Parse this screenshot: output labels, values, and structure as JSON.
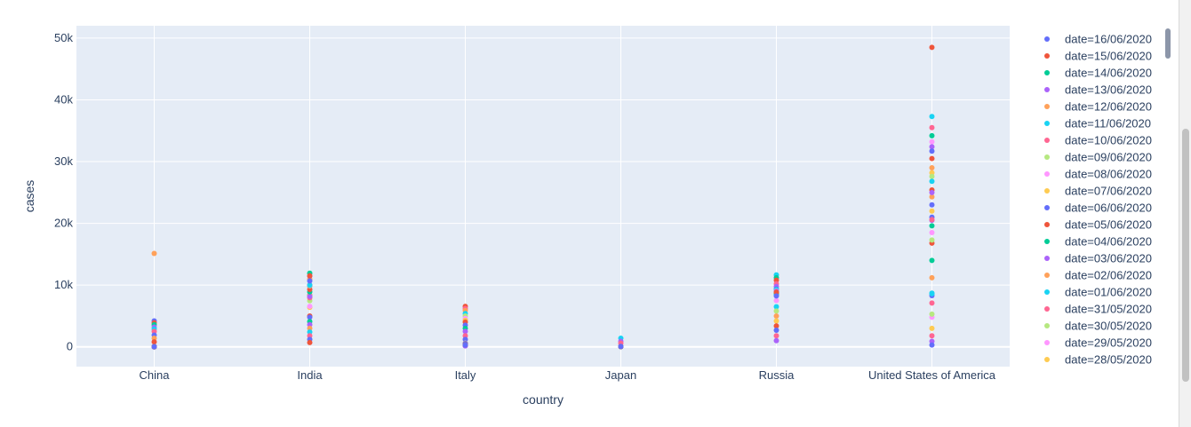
{
  "chart_data": {
    "type": "scatter",
    "xlabel": "country",
    "ylabel": "cases",
    "categories": [
      "China",
      "India",
      "Italy",
      "Japan",
      "Russia",
      "United States of America"
    ],
    "ylim": [
      -3200,
      52000
    ],
    "yticks": [
      0,
      10000,
      20000,
      30000,
      40000,
      50000
    ],
    "ytick_labels": [
      "0",
      "10k",
      "20k",
      "30k",
      "40k",
      "50k"
    ],
    "grid": true,
    "legend": "right",
    "series": [
      {
        "name": "date=16/06/2020",
        "color": "#636efa",
        "values": [
          40,
          10667,
          303,
          72,
          8248,
          23000
        ]
      },
      {
        "name": "date=15/06/2020",
        "color": "#EF553B",
        "values": [
          49,
          11502,
          338,
          50,
          8835,
          48500
        ]
      },
      {
        "name": "date=14/06/2020",
        "color": "#00cc96",
        "values": [
          57,
          11929,
          346,
          47,
          8706,
          14000
        ]
      },
      {
        "name": "date=13/06/2020",
        "color": "#ab63fa",
        "values": [
          11,
          11458,
          163,
          40,
          8987,
          25000
        ]
      },
      {
        "name": "date=12/06/2020",
        "color": "#FFA15A",
        "values": [
          11,
          10956,
          202,
          61,
          8779,
          29000
        ]
      },
      {
        "name": "date=11/06/2020",
        "color": "#19d3f3",
        "values": [
          7,
          9996,
          283,
          41,
          8404,
          26800
        ]
      },
      {
        "name": "date=10/06/2020",
        "color": "#FF6692",
        "values": [
          3,
          9985,
          202,
          36,
          8595,
          20600
        ]
      },
      {
        "name": "date=09/06/2020",
        "color": "#B6E880",
        "values": [
          3,
          9987,
          280,
          18,
          8985,
          17300
        ]
      },
      {
        "name": "date=08/06/2020",
        "color": "#FF97FF",
        "values": [
          4,
          9983,
          197,
          42,
          9035,
          18500
        ]
      },
      {
        "name": "date=07/06/2020",
        "color": "#FECB52",
        "values": [
          6,
          9887,
          270,
          47,
          8855,
          22000
        ]
      },
      {
        "name": "date=06/06/2020",
        "color": "#636efa",
        "values": [
          5,
          9851,
          518,
          48,
          8726,
          21000
        ]
      },
      {
        "name": "date=05/06/2020",
        "color": "#EF553B",
        "values": [
          7,
          9304,
          518,
          51,
          8831,
          16800
        ]
      },
      {
        "name": "date=04/06/2020",
        "color": "#00cc96",
        "values": [
          5,
          8909,
          321,
          40,
          8536,
          19600
        ]
      },
      {
        "name": "date=03/06/2020",
        "color": "#ab63fa",
        "values": [
          1,
          8171,
          318,
          31,
          8863,
          20500
        ]
      },
      {
        "name": "date=02/06/2020",
        "color": "#FFA15A",
        "values": [
          16,
          8392,
          355,
          28,
          9035,
          11200
        ]
      },
      {
        "name": "date=01/06/2020",
        "color": "#19d3f3",
        "values": [
          16,
          8380,
          416,
          49,
          9268,
          8600
        ]
      },
      {
        "name": "date=31/05/2020",
        "color": "#FF6692",
        "values": [
          4,
          7964,
          516,
          50,
          8952,
          7100
        ]
      },
      {
        "name": "date=30/05/2020",
        "color": "#B6E880",
        "values": [
          2,
          7466,
          593,
          51,
          8572,
          5300
        ]
      },
      {
        "name": "date=29/05/2020",
        "color": "#FF97FF",
        "values": [
          4,
          6566,
          584,
          33,
          8371,
          4800
        ]
      },
      {
        "name": "date=28/05/2020",
        "color": "#FECB52",
        "values": [
          2,
          6387,
          531,
          26,
          8338,
          3000
        ]
      }
    ],
    "extra_points": [
      {
        "category": "China",
        "color": "#FFA15A",
        "value": 15136
      },
      {
        "category": "China",
        "color": "#636efa",
        "value": 4200
      },
      {
        "category": "China",
        "color": "#EF553B",
        "value": 3900
      },
      {
        "category": "China",
        "color": "#00cc96",
        "value": 3600
      },
      {
        "category": "China",
        "color": "#ab63fa",
        "value": 3200
      },
      {
        "category": "China",
        "color": "#19d3f3",
        "value": 2900
      },
      {
        "category": "China",
        "color": "#FF6692",
        "value": 2500
      },
      {
        "category": "China",
        "color": "#636efa",
        "value": 1900
      },
      {
        "category": "China",
        "color": "#FFA15A",
        "value": 1400
      },
      {
        "category": "China",
        "color": "#EF553B",
        "value": 800
      },
      {
        "category": "India",
        "color": "#EF553B",
        "value": 5000
      },
      {
        "category": "India",
        "color": "#636efa",
        "value": 4800
      },
      {
        "category": "India",
        "color": "#00cc96",
        "value": 4100
      },
      {
        "category": "India",
        "color": "#ab63fa",
        "value": 3600
      },
      {
        "category": "India",
        "color": "#FFA15A",
        "value": 3000
      },
      {
        "category": "India",
        "color": "#19d3f3",
        "value": 2400
      },
      {
        "category": "India",
        "color": "#FF6692",
        "value": 1800
      },
      {
        "category": "India",
        "color": "#636efa",
        "value": 1200
      },
      {
        "category": "India",
        "color": "#EF553B",
        "value": 700
      },
      {
        "category": "Italy",
        "color": "#EF553B",
        "value": 6557
      },
      {
        "category": "Italy",
        "color": "#FF6692",
        "value": 6200
      },
      {
        "category": "Italy",
        "color": "#FFA15A",
        "value": 5900
      },
      {
        "category": "Italy",
        "color": "#19d3f3",
        "value": 5400
      },
      {
        "category": "Italy",
        "color": "#B6E880",
        "value": 5000
      },
      {
        "category": "Italy",
        "color": "#FF97FF",
        "value": 4600
      },
      {
        "category": "Italy",
        "color": "#FECB52",
        "value": 4300
      },
      {
        "category": "Italy",
        "color": "#EF553B",
        "value": 4000
      },
      {
        "category": "Italy",
        "color": "#636efa",
        "value": 3500
      },
      {
        "category": "Italy",
        "color": "#00cc96",
        "value": 3000
      },
      {
        "category": "Italy",
        "color": "#ab63fa",
        "value": 2500
      },
      {
        "category": "Italy",
        "color": "#FF6692",
        "value": 1800
      },
      {
        "category": "Italy",
        "color": "#636efa",
        "value": 1200
      },
      {
        "category": "Japan",
        "color": "#19d3f3",
        "value": 1401
      },
      {
        "category": "Japan",
        "color": "#ab63fa",
        "value": 900
      },
      {
        "category": "Japan",
        "color": "#FF6692",
        "value": 600
      },
      {
        "category": "Russia",
        "color": "#19d3f3",
        "value": 11656
      },
      {
        "category": "Russia",
        "color": "#00cc96",
        "value": 11200
      },
      {
        "category": "Russia",
        "color": "#EF553B",
        "value": 10800
      },
      {
        "category": "Russia",
        "color": "#FF6692",
        "value": 10200
      },
      {
        "category": "Russia",
        "color": "#ab63fa",
        "value": 9800
      },
      {
        "category": "Russia",
        "color": "#636efa",
        "value": 9400
      },
      {
        "category": "Russia",
        "color": "#FF97FF",
        "value": 7500
      },
      {
        "category": "Russia",
        "color": "#19d3f3",
        "value": 6500
      },
      {
        "category": "Russia",
        "color": "#B6E880",
        "value": 5800
      },
      {
        "category": "Russia",
        "color": "#FFA15A",
        "value": 5000
      },
      {
        "category": "Russia",
        "color": "#FECB52",
        "value": 4200
      },
      {
        "category": "Russia",
        "color": "#EF553B",
        "value": 3400
      },
      {
        "category": "Russia",
        "color": "#636efa",
        "value": 2700
      },
      {
        "category": "Russia",
        "color": "#FF6692",
        "value": 1800
      },
      {
        "category": "Russia",
        "color": "#ab63fa",
        "value": 1000
      },
      {
        "category": "United States of America",
        "color": "#19d3f3",
        "value": 37300
      },
      {
        "category": "United States of America",
        "color": "#FF6692",
        "value": 35500
      },
      {
        "category": "United States of America",
        "color": "#00cc96",
        "value": 34200
      },
      {
        "category": "United States of America",
        "color": "#FF97FF",
        "value": 33200
      },
      {
        "category": "United States of America",
        "color": "#ab63fa",
        "value": 32400
      },
      {
        "category": "United States of America",
        "color": "#636efa",
        "value": 31700
      },
      {
        "category": "United States of America",
        "color": "#EF553B",
        "value": 30500
      },
      {
        "category": "United States of America",
        "color": "#FECB52",
        "value": 28200
      },
      {
        "category": "United States of America",
        "color": "#B6E880",
        "value": 27600
      },
      {
        "category": "United States of America",
        "color": "#FFA15A",
        "value": 24300
      },
      {
        "category": "United States of America",
        "color": "#EF553B",
        "value": 25400
      },
      {
        "category": "United States of America",
        "color": "#19d3f3",
        "value": 8700
      },
      {
        "category": "United States of America",
        "color": "#636efa",
        "value": 8300
      },
      {
        "category": "United States of America",
        "color": "#FF6692",
        "value": 1800
      },
      {
        "category": "United States of America",
        "color": "#ab63fa",
        "value": 900
      },
      {
        "category": "United States of America",
        "color": "#636efa",
        "value": 300
      }
    ]
  }
}
